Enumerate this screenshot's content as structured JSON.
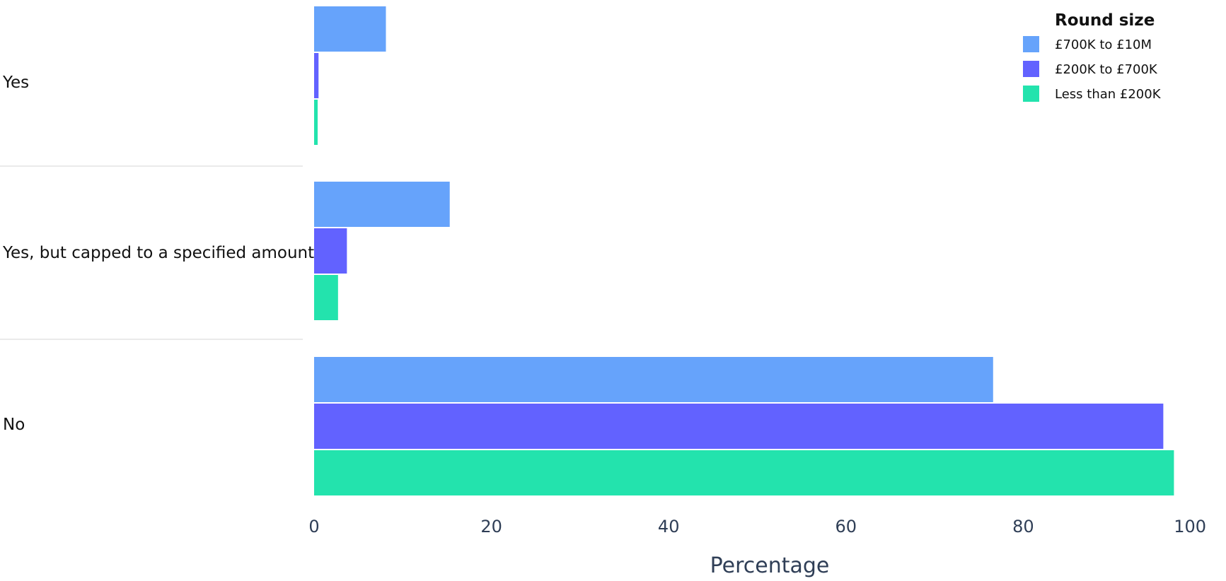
{
  "chart_data": {
    "type": "bar",
    "orientation": "horizontal",
    "categories": [
      "Yes",
      "Yes, but capped to a specified amount",
      "No"
    ],
    "series": [
      {
        "name": "£700K to £10M",
        "color": "#66a3fb",
        "values": [
          8.1,
          15.3,
          76.6
        ]
      },
      {
        "name": "£200K to £700K",
        "color": "#6262ff",
        "values": [
          0.5,
          3.7,
          95.8
        ]
      },
      {
        "name": "Less than £200K",
        "color": "#23e3ad",
        "values": [
          0.4,
          2.7,
          97.0
        ]
      }
    ],
    "xlabel": "Percentage",
    "ylabel": "",
    "xlim": [
      0,
      100
    ],
    "xticks": [
      0,
      20,
      40,
      60,
      80,
      100
    ],
    "legend": {
      "title": "Round size",
      "position": "top-right"
    },
    "grid": false
  }
}
